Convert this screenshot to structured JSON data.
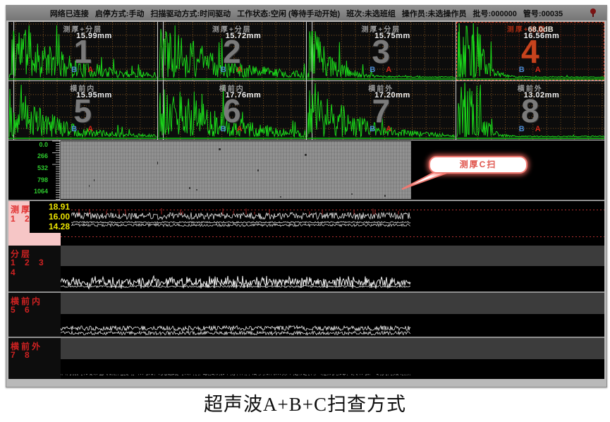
{
  "window": {
    "statusbar": {
      "items": [
        "网络已连接",
        "启停方式:手动",
        "扫描驱动方式:时间驱动",
        "工作状态:空闲 (等待手动开始)",
        "班次:未选班组",
        "操作员:未选操作员",
        "批号:000000",
        "管号:00035"
      ],
      "pin_icon": "red-pin"
    },
    "gate_labels": {
      "a": "A",
      "b": "B"
    },
    "ascan_panels": [
      {
        "number": "1",
        "title": "测厚+分层",
        "value": "15.99mm"
      },
      {
        "number": "2",
        "title": "测厚+分层",
        "value": "15.72mm"
      },
      {
        "number": "3",
        "title": "测厚+分层",
        "value": "15.75mm"
      },
      {
        "number": "4",
        "title": "测厚+分层",
        "gain": "68.0dB",
        "value": "16.56mm",
        "selected": true
      },
      {
        "number": "5",
        "title": "横前内",
        "value": "15.95mm"
      },
      {
        "number": "6",
        "title": "横前内",
        "value": "17.76mm"
      },
      {
        "number": "7",
        "title": "横前外",
        "value": "17.20mm"
      },
      {
        "number": "8",
        "title": "横前外",
        "value": "13.02mm"
      }
    ],
    "cscan": {
      "axis_labels": [
        "0.0",
        "266",
        "532",
        "798",
        "1064"
      ],
      "callout": "测厚C扫"
    },
    "bscan_strips": [
      {
        "name": "测厚",
        "channels": "1 2 3",
        "values": [
          "18.91",
          "16.00",
          "14.28"
        ]
      },
      {
        "name": "分层",
        "channels": "1 2 3 4"
      },
      {
        "name": "横前内",
        "channels": "5 6"
      },
      {
        "name": "横前外",
        "channels": "7 8"
      }
    ]
  },
  "caption": "超声波A+B+C扫查方式",
  "colors": {
    "waveform_green": "#1ad41a",
    "grid_dot": "#9a6428",
    "selected_red": "#c6431d",
    "gate_a_red": "#d42718",
    "gate_b_blue": "#4c8bd2",
    "strip_label_red": "#cf2222",
    "strip1_pink": "#f6c6c6",
    "value_yellow": "#ece400",
    "axis_green": "#2ecb2e",
    "callout_red": "#e0554d"
  }
}
